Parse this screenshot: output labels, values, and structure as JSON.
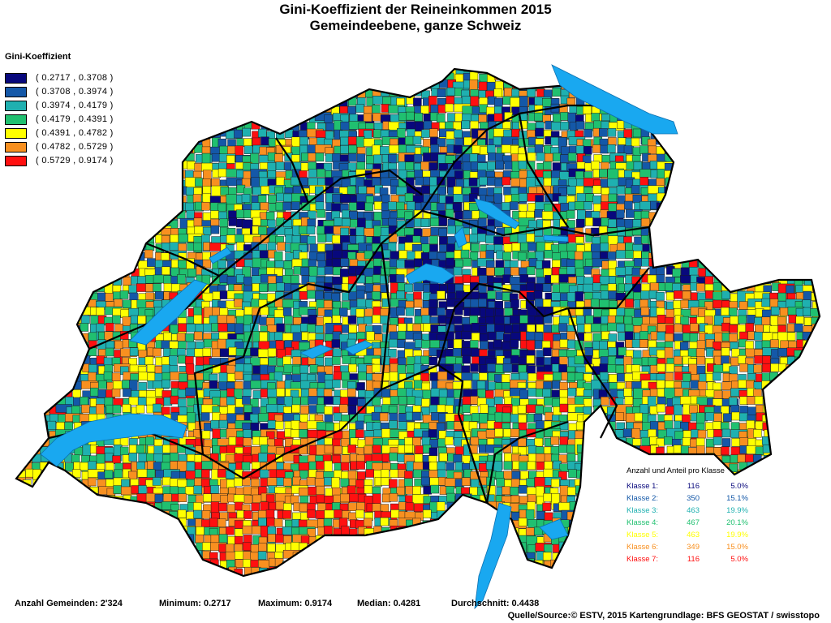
{
  "title": {
    "line1": "Gini-Koeffizient der Reineinkommen 2015",
    "line2": "Gemeindeebene, ganze Schweiz"
  },
  "legend": {
    "title": "Gini-Koeffizient",
    "items": [
      {
        "label": "( 0.2717 , 0.3708 )",
        "color": "#08087c"
      },
      {
        "label": "( 0.3708 , 0.3974 )",
        "color": "#1458a8"
      },
      {
        "label": "( 0.3974 , 0.4179 )",
        "color": "#1fb0b0"
      },
      {
        "label": "( 0.4179 , 0.4391 )",
        "color": "#20c070"
      },
      {
        "label": "( 0.4391 , 0.4782 )",
        "color": "#ffff00"
      },
      {
        "label": "( 0.4782 , 0.5729 )",
        "color": "#f89020"
      },
      {
        "label": "( 0.5729 , 0.9174 )",
        "color": "#ff1010"
      }
    ]
  },
  "class_table": {
    "title": "Anzahl und Anteil pro Klasse",
    "rows": [
      {
        "klasse": "Klasse  1:",
        "count": "116",
        "pct": "5.0%"
      },
      {
        "klasse": "Klasse  2:",
        "count": "350",
        "pct": "15.1%"
      },
      {
        "klasse": "Klasse  3:",
        "count": "463",
        "pct": "19.9%"
      },
      {
        "klasse": "Klasse  4:",
        "count": "467",
        "pct": "20.1%"
      },
      {
        "klasse": "Klasse  5:",
        "count": "463",
        "pct": "19.9%"
      },
      {
        "klasse": "Klasse  6:",
        "count": "349",
        "pct": "15.0%"
      },
      {
        "klasse": "Klasse  7:",
        "count": "116",
        "pct": "5.0%"
      }
    ]
  },
  "stats": {
    "anzahl": "Anzahl Gemeinden: 2'324",
    "minimum": "Minimum: 0.2717",
    "maximum": "Maximum: 0.9174",
    "median": "Median: 0.4281",
    "durchschnitt": "Durchschnitt: 0.4438"
  },
  "source": "Quelle/Source:© ESTV, 2015 Kartengrundlage: BFS GEOSTAT / swisstopo",
  "colors": {
    "lake": "#19a8f0",
    "border": "#000000"
  }
}
